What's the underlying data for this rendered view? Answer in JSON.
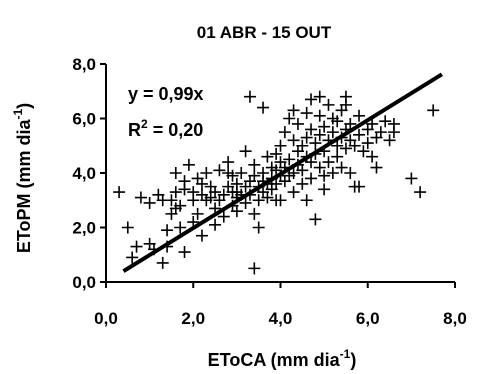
{
  "chart_data": {
    "type": "scatter",
    "title": "01 ABR - 15 OUT",
    "xlabel_main": "EToCA (mm dia",
    "xlabel_sup": "-1",
    "xlabel_end": ")",
    "ylabel_main": "EToPM (mm dia",
    "ylabel_sup": "-1",
    "ylabel_end": ")",
    "xlim": [
      0,
      8
    ],
    "ylim": [
      0,
      8
    ],
    "x_ticks": [
      "0,0",
      "2,0",
      "4,0",
      "6,0",
      "8,0"
    ],
    "y_ticks": [
      "0,0",
      "2,0",
      "4,0",
      "6,0",
      "8,0"
    ],
    "grid": false,
    "equation": "y = 0,99x",
    "r2_main": "R",
    "r2_sup": "2",
    "r2_value": " = 0,20",
    "regression_slope": 0.99,
    "regression_x_range": [
      0.4,
      7.7
    ],
    "marker": "+",
    "points": [
      [
        0.3,
        3.3
      ],
      [
        0.5,
        2.0
      ],
      [
        0.6,
        0.9
      ],
      [
        0.8,
        3.1
      ],
      [
        1.0,
        1.4
      ],
      [
        1.1,
        1.2
      ],
      [
        1.2,
        3.2
      ],
      [
        1.3,
        0.7
      ],
      [
        1.4,
        1.3
      ],
      [
        1.4,
        1.9
      ],
      [
        1.5,
        2.5
      ],
      [
        1.5,
        3.0
      ],
      [
        1.6,
        3.3
      ],
      [
        1.6,
        4.0
      ],
      [
        1.7,
        2.0
      ],
      [
        1.7,
        2.8
      ],
      [
        1.8,
        3.4
      ],
      [
        1.8,
        3.7
      ],
      [
        1.8,
        1.1
      ],
      [
        1.9,
        4.3
      ],
      [
        2.0,
        3.0
      ],
      [
        2.0,
        3.3
      ],
      [
        2.1,
        2.5
      ],
      [
        2.1,
        3.8
      ],
      [
        2.2,
        3.2
      ],
      [
        2.2,
        1.7
      ],
      [
        2.3,
        3.0
      ],
      [
        2.3,
        4.0
      ],
      [
        2.4,
        3.5
      ],
      [
        2.4,
        3.1
      ],
      [
        2.5,
        2.7
      ],
      [
        2.5,
        3.3
      ],
      [
        2.6,
        3.0
      ],
      [
        2.6,
        4.1
      ],
      [
        2.7,
        3.2
      ],
      [
        2.7,
        2.4
      ],
      [
        2.8,
        3.5
      ],
      [
        2.8,
        4.4
      ],
      [
        2.9,
        2.8
      ],
      [
        2.9,
        3.3
      ],
      [
        3.0,
        3.1
      ],
      [
        3.0,
        3.6
      ],
      [
        3.0,
        3.3
      ],
      [
        3.1,
        4.0
      ],
      [
        3.1,
        3.2
      ],
      [
        3.2,
        3.5
      ],
      [
        3.2,
        2.9
      ],
      [
        3.3,
        3.7
      ],
      [
        3.3,
        3.2
      ],
      [
        3.4,
        3.9
      ],
      [
        3.4,
        2.5
      ],
      [
        3.4,
        4.3
      ],
      [
        3.5,
        3.0
      ],
      [
        3.5,
        3.5
      ],
      [
        3.5,
        2.0
      ],
      [
        3.6,
        3.7
      ],
      [
        3.6,
        4.0
      ],
      [
        3.6,
        3.3
      ],
      [
        3.7,
        3.6
      ],
      [
        3.7,
        4.6
      ],
      [
        3.7,
        3.1
      ],
      [
        3.8,
        3.8
      ],
      [
        3.8,
        4.2
      ],
      [
        3.8,
        3.4
      ],
      [
        3.9,
        4.1
      ],
      [
        3.9,
        4.7
      ],
      [
        3.9,
        3.6
      ],
      [
        4.0,
        3.9
      ],
      [
        4.0,
        4.4
      ],
      [
        4.0,
        5.0
      ],
      [
        4.0,
        3.0
      ],
      [
        4.1,
        4.2
      ],
      [
        4.1,
        3.7
      ],
      [
        4.1,
        5.5
      ],
      [
        4.2,
        4.5
      ],
      [
        4.2,
        3.9
      ],
      [
        4.2,
        6.0
      ],
      [
        4.3,
        4.0
      ],
      [
        4.3,
        5.2
      ],
      [
        4.3,
        3.3
      ],
      [
        4.4,
        4.3
      ],
      [
        4.4,
        4.8
      ],
      [
        4.4,
        5.8
      ],
      [
        4.5,
        4.1
      ],
      [
        4.5,
        5.0
      ],
      [
        4.5,
        3.6
      ],
      [
        4.6,
        4.6
      ],
      [
        4.6,
        5.3
      ],
      [
        4.6,
        6.2
      ],
      [
        4.7,
        4.4
      ],
      [
        4.7,
        3.8
      ],
      [
        4.7,
        5.6
      ],
      [
        4.8,
        4.7
      ],
      [
        4.8,
        5.1
      ],
      [
        4.8,
        2.3
      ],
      [
        4.9,
        4.2
      ],
      [
        4.9,
        5.4
      ],
      [
        4.9,
        6.1
      ],
      [
        5.0,
        4.8
      ],
      [
        5.0,
        5.7
      ],
      [
        5.0,
        3.9
      ],
      [
        5.1,
        5.2
      ],
      [
        5.1,
        4.4
      ],
      [
        5.1,
        6.5
      ],
      [
        5.2,
        5.5
      ],
      [
        5.2,
        4.0
      ],
      [
        5.2,
        6.0
      ],
      [
        5.3,
        5.0
      ],
      [
        5.3,
        5.9
      ],
      [
        5.3,
        4.6
      ],
      [
        5.4,
        5.3
      ],
      [
        5.4,
        6.3
      ],
      [
        5.4,
        4.2
      ],
      [
        5.5,
        5.6
      ],
      [
        5.5,
        4.9
      ],
      [
        5.5,
        6.5
      ],
      [
        5.6,
        5.2
      ],
      [
        5.6,
        5.8
      ],
      [
        5.6,
        4.0
      ],
      [
        5.7,
        3.5
      ],
      [
        5.7,
        5.0
      ],
      [
        5.8,
        5.4
      ],
      [
        5.8,
        6.1
      ],
      [
        5.9,
        4.8
      ],
      [
        6.0,
        5.6
      ],
      [
        6.0,
        5.1
      ],
      [
        6.1,
        5.8
      ],
      [
        6.1,
        4.6
      ],
      [
        6.2,
        5.3
      ],
      [
        6.3,
        5.5
      ],
      [
        6.4,
        5.9
      ],
      [
        6.5,
        5.2
      ],
      [
        6.6,
        5.8
      ],
      [
        6.6,
        5.5
      ],
      [
        7.0,
        3.8
      ],
      [
        7.2,
        3.3
      ],
      [
        7.5,
        6.3
      ],
      [
        3.4,
        0.5
      ],
      [
        3.3,
        6.8
      ],
      [
        4.9,
        6.8
      ],
      [
        1.3,
        3.0
      ],
      [
        2.0,
        2.2
      ],
      [
        2.2,
        3.6
      ],
      [
        2.9,
        3.9
      ],
      [
        3.2,
        4.8
      ],
      [
        3.6,
        6.4
      ],
      [
        4.3,
        6.3
      ],
      [
        4.7,
        6.7
      ],
      [
        5.5,
        6.8
      ],
      [
        1.0,
        2.9
      ],
      [
        0.7,
        1.3
      ],
      [
        1.6,
        2.7
      ],
      [
        2.5,
        2.1
      ],
      [
        2.8,
        4.0
      ],
      [
        3.0,
        2.6
      ],
      [
        3.9,
        3.0
      ],
      [
        4.6,
        3.0
      ],
      [
        5.0,
        3.4
      ],
      [
        5.8,
        3.5
      ],
      [
        6.2,
        4.2
      ]
    ]
  }
}
